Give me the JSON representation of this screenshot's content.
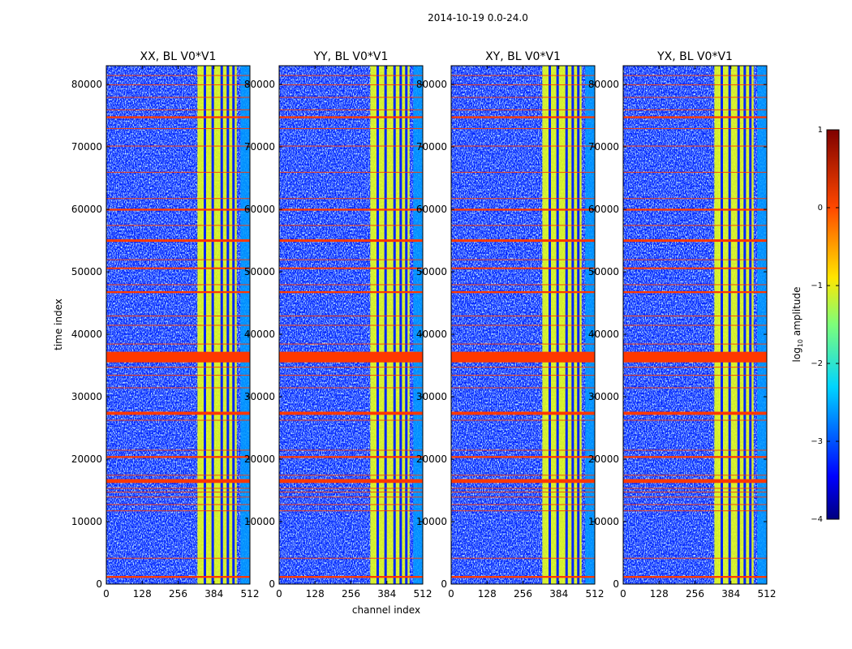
{
  "chart_data": {
    "type": "heatmap",
    "suptitle": "2014-10-19 0.0-24.0",
    "xlabel": "channel index",
    "ylabel": "time index",
    "xlim": [
      0,
      512
    ],
    "ylim": [
      0,
      83000
    ],
    "xticks": [
      0,
      128,
      256,
      384,
      512
    ],
    "yticks": [
      0,
      10000,
      20000,
      30000,
      40000,
      50000,
      60000,
      70000,
      80000
    ],
    "colorbar": {
      "label": "log10 amplitude",
      "label_main": "log",
      "label_sub": "10",
      "label_rest": " amplitude",
      "range": [
        -4,
        1
      ],
      "ticks": [
        1,
        0,
        -1,
        -2,
        -3,
        -4
      ],
      "tick_labels": [
        "1",
        "0",
        "−1",
        "−2",
        "−3",
        "−4"
      ],
      "colormap": "jet"
    },
    "panels": [
      {
        "title": "XX, BL V0*V1",
        "pol": "XX"
      },
      {
        "title": "YY, BL V0*V1",
        "pol": "YY"
      },
      {
        "title": "XY, BL V0*V1",
        "pol": "XY"
      },
      {
        "title": "YX, BL V0*V1",
        "pol": "YX"
      }
    ],
    "flagged_time_ranges": [
      [
        35500,
        37200
      ],
      [
        1000,
        1300
      ],
      [
        16200,
        16800
      ],
      [
        27100,
        27600
      ],
      [
        54800,
        55200
      ],
      [
        46600,
        46900
      ],
      [
        59800,
        60100
      ],
      [
        74600,
        74900
      ],
      [
        20200,
        20500
      ],
      [
        50500,
        50700
      ]
    ],
    "thin_flag_times": [
      4200,
      11800,
      12800,
      14000,
      14800,
      15400,
      17500,
      21500,
      26300,
      31500,
      33500,
      34800,
      38500,
      41500,
      43000,
      48000,
      52000,
      57500,
      61800,
      66000,
      70200,
      73000,
      76000,
      78000,
      80000,
      81500
    ],
    "bright_channel_range": [
      325,
      465
    ],
    "gap_channels": [
      350,
      378,
      410,
      432,
      452
    ],
    "dim_channel_range": [
      478,
      512
    ],
    "amplitude_scale": {
      "background": -3.2,
      "bright_band": -1.0,
      "flag": 0.1
    }
  }
}
